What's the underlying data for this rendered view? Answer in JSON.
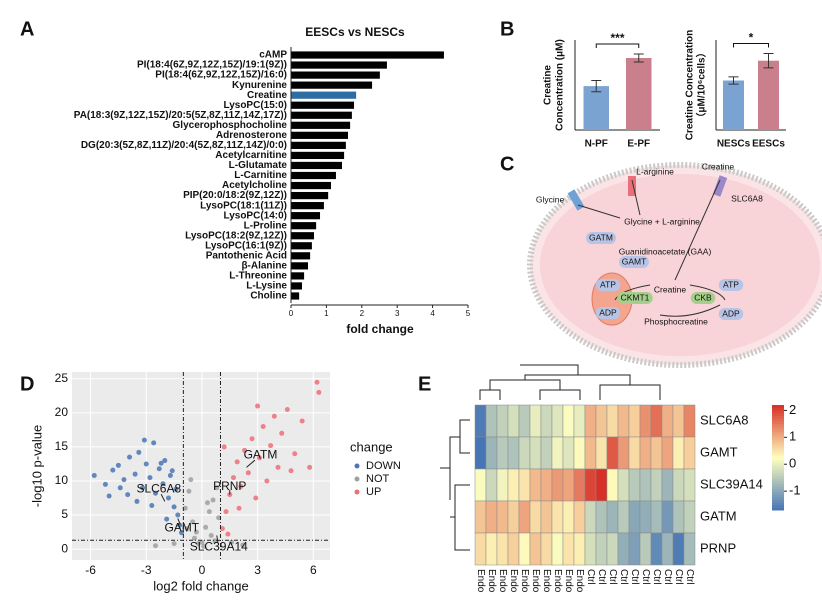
{
  "panel_labels": [
    "A",
    "B",
    "C",
    "D",
    "E"
  ],
  "chart_data": [
    {
      "type": "barh",
      "title": "EESCs vs NESCs",
      "xlabel": "fold change",
      "categories": [
        "cAMP",
        "PI(18:4(6Z,9Z,12Z,15Z)/19:1(9Z))",
        "PI(18:4(6Z,9Z,12Z,15Z)/16:0)",
        "Kynurenine",
        "Creatine",
        "LysoPC(15:0)",
        "PA(18:3(9Z,12Z,15Z)/20:5(5Z,8Z,11Z,14Z,17Z))",
        "Glycerophosphocholine",
        "Adrenosterone",
        "DG(20:3(5Z,8Z,11Z)/20:4(5Z,8Z,11Z,14Z)/0:0)",
        "Acetylcarnitine",
        "L-Glutamate",
        "L-Carnitine",
        "Acetylcholine",
        "PIP(20:0/18:2(9Z,12Z))",
        "LysoPC(18:1(11Z))",
        "LysoPC(14:0)",
        "L-Proline",
        "LysoPC(18:2(9Z,12Z))",
        "LysoPC(16:1(9Z))",
        "Pantothenic Acid",
        "β-Alanine",
        "L-Threonine",
        "L-Lysine",
        "Choline"
      ],
      "values": [
        4.32,
        2.71,
        2.51,
        2.29,
        1.84,
        1.78,
        1.72,
        1.67,
        1.61,
        1.55,
        1.5,
        1.44,
        1.27,
        1.13,
        1.05,
        0.93,
        0.82,
        0.71,
        0.65,
        0.59,
        0.54,
        0.48,
        0.37,
        0.31,
        0.23
      ],
      "colors": [
        "#000000",
        "#000000",
        "#000000",
        "#000000",
        "#2e6da4",
        "#000000",
        "#000000",
        "#000000",
        "#000000",
        "#000000",
        "#000000",
        "#000000",
        "#000000",
        "#000000",
        "#000000",
        "#000000",
        "#000000",
        "#000000",
        "#000000",
        "#000000",
        "#000000",
        "#000000",
        "#000000",
        "#000000",
        "#000000"
      ],
      "xlim": [
        0,
        5
      ],
      "xticks": [
        0,
        1,
        2,
        3,
        4,
        5
      ]
    },
    {
      "type": "bar",
      "ylabel": [
        "Creatine",
        "Concentration (μM)"
      ],
      "categories": [
        "N-PF",
        "E-PF"
      ],
      "values": [
        195,
        320
      ],
      "errors": [
        25,
        18
      ],
      "colors": [
        "#7ba3d1",
        "#c97f8c"
      ],
      "significance": "***",
      "ylim": [
        0,
        400
      ]
    },
    {
      "type": "bar",
      "ylabel": [
        "Creatine Concentration",
        "（μM/10⁶cells）"
      ],
      "categories": [
        "NESCs",
        "EESCs"
      ],
      "values": [
        55,
        77
      ],
      "errors": [
        4,
        8
      ],
      "colors": [
        "#7ba3d1",
        "#c97f8c"
      ],
      "significance": "*",
      "ylim": [
        0,
        100
      ]
    },
    {
      "type": "scatter",
      "xlabel": "log2 fold change",
      "ylabel": "-log10 p-value",
      "legend_title": "change",
      "xlim": [
        -7,
        6.9
      ],
      "ylim": [
        -1.6,
        26
      ],
      "xticks": [
        -6,
        -3,
        0,
        3,
        6
      ],
      "yticks": [
        0,
        5,
        10,
        15,
        20,
        25
      ],
      "thresholds": {
        "x": [
          -1,
          1
        ],
        "y": 1.3
      },
      "series": [
        {
          "name": "DOWN",
          "color": "#4a76b4",
          "x": [
            -5.8,
            -5.2,
            -4.8,
            -4.5,
            -4.2,
            -3.9,
            -3.6,
            -3.4,
            -3.2,
            -3.0,
            -2.8,
            -2.6,
            -2.5,
            -2.3,
            -2.1,
            -2.0,
            -1.8,
            -1.7,
            -1.5,
            -1.4,
            -1.3,
            -1.2,
            -1.1,
            -4.0,
            -3.5,
            -2.7,
            -1.9,
            -2.2,
            -3.1,
            -1.6,
            -5.0,
            -4.4
          ],
          "values": [
            10.8,
            9.5,
            11.6,
            12.3,
            10.2,
            13.5,
            11.0,
            14.2,
            9.0,
            12.5,
            10.5,
            15.6,
            8.2,
            11.8,
            9.6,
            13.0,
            7.5,
            10.8,
            6.2,
            8.8,
            5.0,
            3.5,
            2.4,
            8.0,
            7.0,
            6.4,
            4.4,
            12.6,
            16.0,
            11.5,
            7.8,
            9.0
          ]
        },
        {
          "name": "NOT",
          "color": "#a0a0a0",
          "x": [
            -0.9,
            -0.7,
            -0.5,
            -0.3,
            0,
            0.2,
            0.4,
            0.6,
            0.8,
            -0.8,
            0.1,
            -0.2,
            0.5,
            -0.6,
            0.9,
            0.3,
            -1.5,
            1.6,
            -0.4,
            0.7,
            -2.5,
            2.2
          ],
          "values": [
            6.0,
            8.5,
            4.0,
            2.5,
            1.0,
            3.2,
            5.5,
            7.2,
            9.0,
            3.0,
            0.4,
            0.8,
            2.0,
            10.2,
            4.6,
            6.8,
            0.8,
            1.0,
            1.6,
            1.2,
            0.5,
            0.6
          ]
        },
        {
          "name": "UP",
          "color": "#ee6f76",
          "x": [
            1.1,
            1.3,
            1.5,
            1.7,
            1.9,
            2.1,
            2.3,
            2.5,
            2.7,
            2.9,
            3.1,
            3.3,
            3.5,
            3.7,
            3.9,
            4.1,
            4.3,
            4.6,
            5.0,
            5.4,
            6.2,
            6.3,
            1.2,
            1.4,
            2.0,
            4.8,
            5.8,
            3.0
          ],
          "values": [
            3.0,
            5.5,
            8.0,
            10.5,
            12.8,
            9.2,
            14.5,
            11.2,
            16.2,
            7.5,
            13.4,
            18.0,
            10.0,
            15.2,
            19.5,
            12.0,
            17.0,
            20.5,
            14.0,
            18.8,
            24.5,
            23.0,
            15.0,
            2.2,
            6.0,
            11.5,
            12.0,
            21.0
          ]
        }
      ],
      "annotations": [
        {
          "text": "GATM",
          "x": 2.4,
          "y": 12
        },
        {
          "text": "PRNP",
          "x": 1.5,
          "y": 8
        },
        {
          "text": "SLC6A8",
          "x": -2.0,
          "y": 7
        },
        {
          "text": "GAMT",
          "x": -1.3,
          "y": 4.5
        },
        {
          "text": "SLC39A14",
          "x": 0.8,
          "y": 2
        }
      ]
    },
    {
      "type": "heatmap",
      "rows": [
        "SLC6A8",
        "GAMT",
        "SLC39A14",
        "GATM",
        "PRNP"
      ],
      "columns": [
        "Endo",
        "Endo",
        "Endo",
        "Endo",
        "Endo",
        "Endo",
        "Endo",
        "Endo",
        "Endo",
        "Endo",
        "Ctrl",
        "Ctrl",
        "Ctrl",
        "Ctrl",
        "Ctrl",
        "Ctrl",
        "Ctrl",
        "Ctrl",
        "Ctrl",
        "Ctrl"
      ],
      "values": [
        [
          -1.6,
          -0.6,
          -0.4,
          -0.2,
          -0.5,
          0,
          -0.3,
          -0.1,
          0.2,
          0,
          1.0,
          0.8,
          0.6,
          0.9,
          0.7,
          1.3,
          1.6,
          1.0,
          0.8,
          1.4
        ],
        [
          -1.7,
          -0.8,
          -0.5,
          -0.6,
          -0.3,
          -0.2,
          -0.4,
          0.1,
          -0.1,
          0.3,
          0.9,
          0.5,
          1.8,
          1.2,
          0.6,
          1.0,
          0.8,
          1.1,
          0.4,
          0.7
        ],
        [
          0.2,
          -0.3,
          0.1,
          0.4,
          0.5,
          0.9,
          1.0,
          1.2,
          1.1,
          1.5,
          2.0,
          2.2,
          0.3,
          -0.2,
          -0.5,
          -0.6,
          -0.4,
          -0.8,
          -0.3,
          -0.2
        ],
        [
          0.8,
          1.0,
          0.9,
          0.7,
          1.1,
          0.6,
          0.8,
          0.5,
          0.4,
          0.7,
          -0.3,
          -0.6,
          -0.8,
          -0.5,
          -1.0,
          -0.9,
          -0.7,
          -1.2,
          -0.6,
          -0.4
        ],
        [
          0.6,
          0.4,
          0.5,
          0.7,
          0.3,
          0.8,
          0.6,
          0.2,
          0.5,
          0.4,
          -0.2,
          -0.4,
          -0.3,
          -0.9,
          -1.1,
          -0.5,
          -1.4,
          -0.8,
          -1.6,
          -0.7
        ]
      ],
      "zlim": [
        -1.7,
        2.2
      ],
      "zticks": [
        -1,
        0,
        1,
        2
      ],
      "colorscale": [
        "#4575b4",
        "#ffffbf",
        "#d73027"
      ]
    }
  ],
  "diagram": {
    "labels": [
      "Glycine",
      "L-arginine",
      "Creatine",
      "SLC6A8",
      "Glycine + L-arginine",
      "GATM",
      "Guanidinoacetate (GAA)",
      "GAMT",
      "Creatine",
      "ATP",
      "ADP",
      "CKMT1",
      "CKB",
      "ATP",
      "ADP",
      "Phosphocreatine"
    ]
  }
}
